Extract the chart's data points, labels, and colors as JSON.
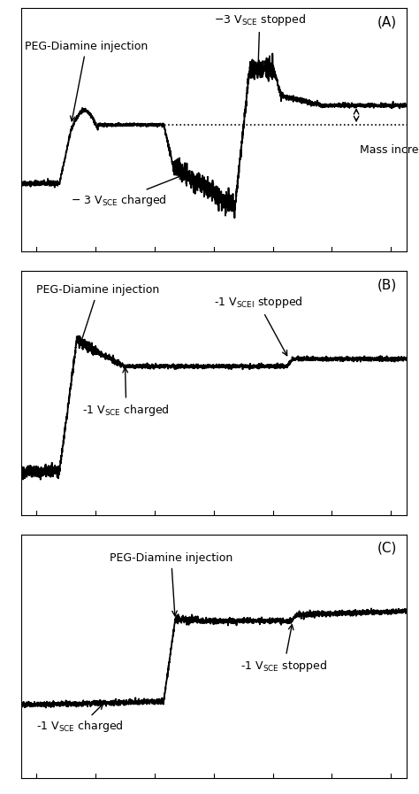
{
  "fig_width": 4.74,
  "fig_height": 8.97,
  "dpi": 100,
  "bg_color": "#ffffff",
  "line_color": "#000000",
  "line_width": 1.5,
  "panel_labels": [
    "(A)",
    "(B)",
    "(C)"
  ],
  "font_size": 9,
  "label_font_size": 11
}
